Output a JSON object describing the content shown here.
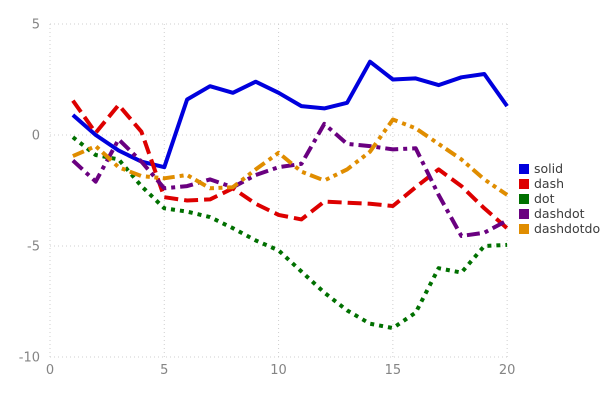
{
  "chart_data": {
    "type": "line",
    "title": "",
    "xlabel": "",
    "ylabel": "",
    "xlim": [
      0,
      20
    ],
    "ylim": [
      -10,
      5
    ],
    "xticks": [
      0,
      5,
      10,
      15,
      20
    ],
    "yticks": [
      5,
      0,
      -5,
      -10
    ],
    "grid": "dotted-lightgray",
    "legend_position": "right-middle",
    "x": [
      1,
      2,
      3,
      4,
      5,
      6,
      7,
      8,
      9,
      10,
      11,
      12,
      13,
      14,
      15,
      16,
      17,
      18,
      19,
      20
    ],
    "series": [
      {
        "name": "solid",
        "color": "#0000dd",
        "linestyle": "solid",
        "values": [
          0.9,
          0.0,
          -0.7,
          -1.2,
          -1.45,
          1.6,
          2.2,
          1.9,
          2.4,
          1.9,
          1.3,
          1.2,
          1.45,
          3.3,
          2.5,
          2.55,
          2.25,
          2.6,
          2.75,
          1.3
        ]
      },
      {
        "name": "dash",
        "color": "#dd0000",
        "linestyle": "dash",
        "values": [
          1.55,
          0.1,
          1.35,
          0.15,
          -2.8,
          -2.95,
          -2.9,
          -2.4,
          -3.1,
          -3.6,
          -3.8,
          -3.0,
          -3.05,
          -3.1,
          -3.2,
          -2.35,
          -1.55,
          -2.3,
          -3.3,
          -4.2
        ]
      },
      {
        "name": "dot",
        "color": "#007000",
        "linestyle": "dot",
        "values": [
          -0.1,
          -0.9,
          -1.1,
          -2.3,
          -3.3,
          -3.45,
          -3.7,
          -4.2,
          -4.75,
          -5.2,
          -6.15,
          -7.1,
          -7.9,
          -8.5,
          -8.7,
          -8.0,
          -6.0,
          -6.2,
          -5.0,
          -4.95
        ]
      },
      {
        "name": "dashdot",
        "color": "#6a0080",
        "linestyle": "dashdot",
        "values": [
          -1.15,
          -2.1,
          -0.2,
          -1.2,
          -2.4,
          -2.3,
          -2.0,
          -2.35,
          -1.8,
          -1.45,
          -1.3,
          0.5,
          -0.4,
          -0.5,
          -0.65,
          -0.6,
          -2.7,
          -4.55,
          -4.4,
          -3.85
        ]
      },
      {
        "name": "dashdotdot",
        "color": "#e08d00",
        "linestyle": "dashdotdot",
        "values": [
          -0.95,
          -0.5,
          -1.45,
          -1.85,
          -1.95,
          -1.8,
          -2.4,
          -2.35,
          -1.55,
          -0.8,
          -1.65,
          -2.05,
          -1.55,
          -0.75,
          0.7,
          0.3,
          -0.4,
          -1.1,
          -2.0,
          -2.7
        ]
      }
    ]
  }
}
